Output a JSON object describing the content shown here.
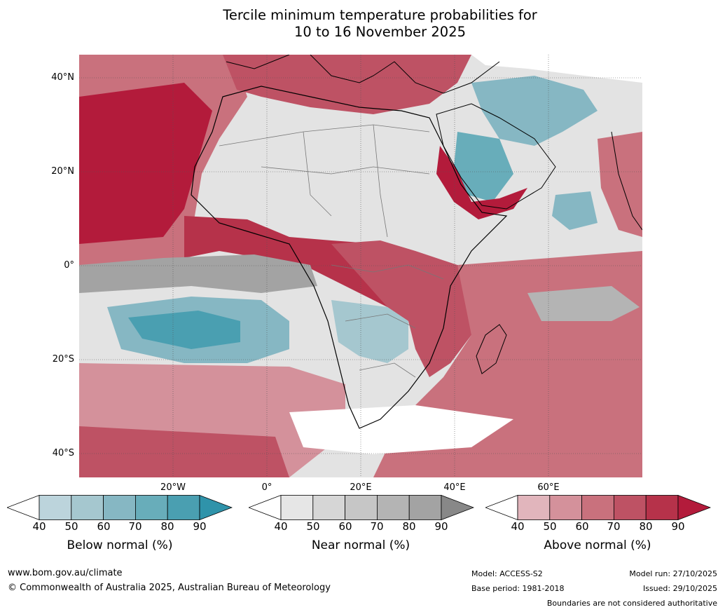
{
  "title": {
    "line1": "Tercile minimum temperature probabilities for",
    "line2": "10 to 16 November 2025"
  },
  "axes": {
    "lat_labels": [
      "40°N",
      "20°N",
      "0°",
      "20°S",
      "40°S"
    ],
    "lon_labels": [
      "20°W",
      "0°",
      "20°E",
      "40°E",
      "60°E"
    ]
  },
  "legends": [
    {
      "name": "below",
      "title": "Below normal (%)",
      "ticks": [
        "40",
        "50",
        "60",
        "70",
        "80",
        "90"
      ],
      "colors": [
        "#ffffff",
        "#bcd4dc",
        "#a5c7cf",
        "#86b7c3",
        "#68adba",
        "#4a9fb1",
        "#2f93aa"
      ]
    },
    {
      "name": "near",
      "title": "Near normal (%)",
      "ticks": [
        "40",
        "50",
        "60",
        "70",
        "80",
        "90"
      ],
      "colors": [
        "#ffffff",
        "#e6e6e6",
        "#d6d6d6",
        "#c6c6c6",
        "#b4b4b4",
        "#a3a3a3",
        "#888888"
      ]
    },
    {
      "name": "above",
      "title": "Above normal (%)",
      "ticks": [
        "40",
        "50",
        "60",
        "70",
        "80",
        "90"
      ],
      "colors": [
        "#ffffff",
        "#e1b5bc",
        "#d4919b",
        "#c9717d",
        "#be5264",
        "#b6324a",
        "#b31b3b"
      ]
    }
  ],
  "footer": {
    "website": "www.bom.gov.au/climate",
    "copyright": "© Commonwealth of Australia 2025, Australian Bureau of Meteorology",
    "model": "Model: ACCESS-S2",
    "base_period": "Base period: 1981-2018",
    "model_run": "Model run: 27/10/2025",
    "issued": "Issued: 29/10/2025",
    "boundaries": "Boundaries are not considered authoritative"
  }
}
